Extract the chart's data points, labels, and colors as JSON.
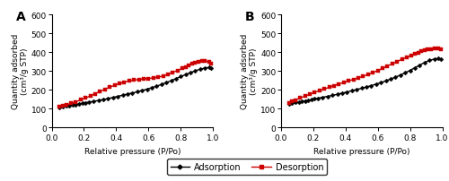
{
  "panel_A_label": "A",
  "panel_B_label": "B",
  "ylabel": "Quantity adsorbed\n(cm³/g STP)",
  "xlabel": "Relative pressure (P/Po)",
  "ylim": [
    0,
    600
  ],
  "xlim": [
    0.0,
    1.0
  ],
  "yticks": [
    0,
    100,
    200,
    300,
    400,
    500,
    600
  ],
  "xticks": [
    0.0,
    0.2,
    0.4,
    0.6,
    0.8,
    1.0
  ],
  "xtick_labels": [
    "0.0",
    "0.2",
    "0.4",
    "0.6",
    "0.8",
    "1.0"
  ],
  "legend_adsorption": "Adsorption",
  "legend_desorption": "Desorption",
  "adsorption_color": "#000000",
  "desorption_color": "#cc0000",
  "linewidth": 1.0,
  "markersize": 2.5,
  "A_adsorption_x": [
    0.05,
    0.07,
    0.09,
    0.11,
    0.13,
    0.15,
    0.17,
    0.19,
    0.21,
    0.23,
    0.26,
    0.29,
    0.32,
    0.35,
    0.38,
    0.41,
    0.44,
    0.47,
    0.5,
    0.53,
    0.56,
    0.59,
    0.62,
    0.65,
    0.68,
    0.71,
    0.74,
    0.77,
    0.8,
    0.83,
    0.86,
    0.89,
    0.92,
    0.95,
    0.975,
    0.99
  ],
  "A_adsorption_y": [
    105,
    110,
    113,
    116,
    119,
    122,
    125,
    128,
    131,
    134,
    138,
    143,
    148,
    153,
    159,
    165,
    171,
    177,
    183,
    189,
    196,
    203,
    211,
    219,
    228,
    238,
    248,
    259,
    270,
    281,
    291,
    301,
    309,
    316,
    318,
    314
  ],
  "A_desorption_x": [
    0.99,
    0.975,
    0.95,
    0.93,
    0.91,
    0.89,
    0.87,
    0.85,
    0.83,
    0.81,
    0.78,
    0.75,
    0.72,
    0.69,
    0.66,
    0.63,
    0.6,
    0.57,
    0.54,
    0.51,
    0.48,
    0.45,
    0.42,
    0.39,
    0.36,
    0.33,
    0.3,
    0.27,
    0.24,
    0.21,
    0.18,
    0.15,
    0.12,
    0.09,
    0.07,
    0.05
  ],
  "A_desorption_y": [
    340,
    348,
    353,
    351,
    347,
    343,
    337,
    330,
    322,
    313,
    303,
    292,
    282,
    273,
    267,
    263,
    260,
    258,
    255,
    251,
    247,
    241,
    233,
    224,
    214,
    203,
    191,
    179,
    167,
    156,
    146,
    136,
    127,
    119,
    113,
    108
  ],
  "B_adsorption_x": [
    0.05,
    0.07,
    0.09,
    0.11,
    0.13,
    0.15,
    0.17,
    0.19,
    0.21,
    0.23,
    0.26,
    0.29,
    0.32,
    0.35,
    0.38,
    0.41,
    0.44,
    0.47,
    0.5,
    0.53,
    0.56,
    0.59,
    0.62,
    0.65,
    0.68,
    0.71,
    0.74,
    0.77,
    0.8,
    0.83,
    0.86,
    0.89,
    0.92,
    0.95,
    0.975,
    0.99
  ],
  "B_adsorption_y": [
    126,
    129,
    132,
    135,
    138,
    141,
    144,
    147,
    151,
    155,
    160,
    165,
    170,
    176,
    182,
    188,
    195,
    201,
    208,
    215,
    222,
    230,
    238,
    247,
    257,
    267,
    278,
    290,
    303,
    317,
    331,
    345,
    356,
    363,
    366,
    362
  ],
  "B_desorption_x": [
    0.99,
    0.975,
    0.95,
    0.93,
    0.91,
    0.89,
    0.87,
    0.85,
    0.83,
    0.81,
    0.78,
    0.75,
    0.72,
    0.69,
    0.66,
    0.63,
    0.6,
    0.57,
    0.54,
    0.51,
    0.48,
    0.45,
    0.42,
    0.39,
    0.36,
    0.33,
    0.3,
    0.27,
    0.24,
    0.21,
    0.18,
    0.15,
    0.12,
    0.09,
    0.07,
    0.05
  ],
  "B_desorption_y": [
    415,
    419,
    418,
    416,
    413,
    409,
    404,
    398,
    391,
    383,
    373,
    362,
    350,
    338,
    326,
    314,
    302,
    291,
    281,
    272,
    263,
    255,
    247,
    239,
    231,
    222,
    213,
    204,
    195,
    186,
    176,
    166,
    156,
    145,
    137,
    130
  ]
}
